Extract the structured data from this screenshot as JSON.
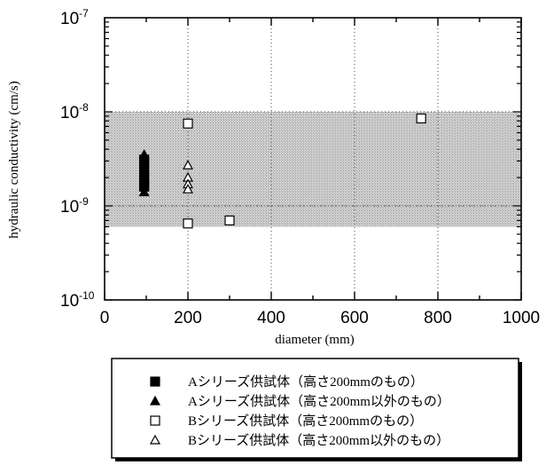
{
  "chart_data": {
    "type": "scatter",
    "xlabel": "diameter (mm)",
    "ylabel": "hydraulic conductivity (cm/s)",
    "xlim": [
      0,
      1000
    ],
    "ylim": [
      1e-10,
      1e-07
    ],
    "y_scale": "log",
    "grid": true,
    "x_ticks": [
      0,
      200,
      400,
      600,
      800,
      1000
    ],
    "y_ticks": [
      {
        "value": 1e-07,
        "base": "10",
        "exp": "-7"
      },
      {
        "value": 1e-08,
        "base": "10",
        "exp": "-8"
      },
      {
        "value": 1e-09,
        "base": "10",
        "exp": "-9"
      },
      {
        "value": 1e-10,
        "base": "10",
        "exp": "-10"
      }
    ],
    "shaded_band": {
      "y_min": 6e-10,
      "y_max": 1e-08
    },
    "reference_line": {
      "y": 1e-09
    },
    "series": [
      {
        "name": "Aシリーズ供試体（高さ200mmのもの）",
        "marker": "filled-square",
        "color": "#000000",
        "points": [
          [
            95,
            3.1e-09
          ],
          [
            95,
            2.8e-09
          ],
          [
            95,
            2.4e-09
          ],
          [
            95,
            2.1e-09
          ],
          [
            95,
            1.9e-09
          ],
          [
            95,
            1.7e-09
          ],
          [
            95,
            1.6e-09
          ]
        ]
      },
      {
        "name": "Aシリーズ供試体（高さ200mm以外のもの）",
        "marker": "filled-triangle",
        "color": "#000000",
        "points": [
          [
            95,
            3.5e-09
          ],
          [
            95,
            1.4e-09
          ]
        ]
      },
      {
        "name": "Bシリーズ供試体（高さ200mmのもの）",
        "marker": "open-square",
        "color": "#000000",
        "points": [
          [
            200,
            7.5e-09
          ],
          [
            200,
            6.5e-10
          ],
          [
            300,
            7e-10
          ],
          [
            760,
            8.5e-09
          ]
        ]
      },
      {
        "name": "Bシリーズ供試体（高さ200mm以外のもの）",
        "marker": "open-triangle",
        "color": "#000000",
        "points": [
          [
            200,
            2.7e-09
          ],
          [
            200,
            2e-09
          ],
          [
            200,
            1.7e-09
          ],
          [
            200,
            1.5e-09
          ]
        ]
      }
    ],
    "legend_position": "bottom",
    "colors": {
      "band": "#c4c4c4",
      "marker": "#000000"
    }
  }
}
